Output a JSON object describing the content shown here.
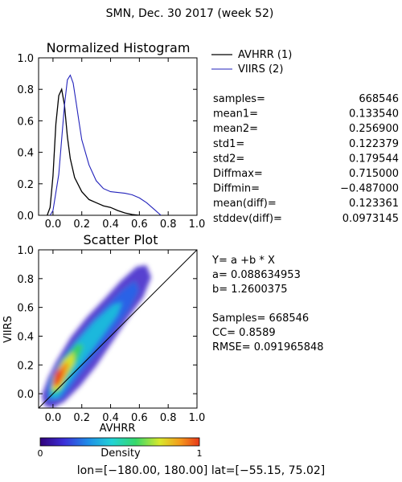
{
  "figure": {
    "title": "SMN,  Dec. 30 2017 (week 52)",
    "footer_lon_prefix": "lon=[",
    "footer_lon_values": "−180.00, 180.00",
    "footer_lat_prefix": "] lat=[",
    "footer_lat_values": "−55.15, 75.02",
    "footer_suffix": "]"
  },
  "colors": {
    "avhrr": "#000000",
    "viirs": "#2222bb",
    "axis": "#000000"
  },
  "chart_data": [
    {
      "type": "line",
      "title": "Normalized Histogram",
      "xlim": [
        -0.1,
        1.0
      ],
      "ylim": [
        0.0,
        1.0
      ],
      "xticks": [
        "0.0",
        "0.2",
        "0.4",
        "0.6",
        "0.8",
        "1.0"
      ],
      "yticks": [
        "0.0",
        "0.2",
        "0.4",
        "0.6",
        "0.8",
        "1.0"
      ],
      "grid": false,
      "legend_position": "right",
      "series": [
        {
          "name": "AVHRR (1)",
          "x": [
            -0.04,
            -0.02,
            0.0,
            0.02,
            0.04,
            0.06,
            0.08,
            0.1,
            0.12,
            0.15,
            0.2,
            0.25,
            0.3,
            0.35,
            0.4,
            0.45,
            0.5,
            0.55,
            0.6
          ],
          "y": [
            0.0,
            0.05,
            0.25,
            0.58,
            0.76,
            0.8,
            0.7,
            0.5,
            0.36,
            0.24,
            0.15,
            0.1,
            0.08,
            0.06,
            0.05,
            0.03,
            0.015,
            0.005,
            0.0
          ]
        },
        {
          "name": "VIIRS (2)",
          "x": [
            -0.02,
            0.0,
            0.04,
            0.08,
            0.1,
            0.12,
            0.14,
            0.16,
            0.18,
            0.2,
            0.25,
            0.3,
            0.35,
            0.4,
            0.45,
            0.5,
            0.55,
            0.6,
            0.65,
            0.7,
            0.75
          ],
          "y": [
            0.0,
            0.03,
            0.26,
            0.7,
            0.86,
            0.89,
            0.84,
            0.72,
            0.6,
            0.48,
            0.32,
            0.22,
            0.17,
            0.15,
            0.145,
            0.14,
            0.13,
            0.11,
            0.08,
            0.04,
            0.0
          ]
        }
      ],
      "stats": [
        {
          "label": "samples=",
          "value": "668546"
        },
        {
          "label": "mean1=",
          "value": "0.133540"
        },
        {
          "label": "mean2=",
          "value": "0.256900"
        },
        {
          "label": "std1=",
          "value": "0.122379"
        },
        {
          "label": "std2=",
          "value": "0.179544"
        },
        {
          "label": "Diffmax=",
          "value": "0.715000"
        },
        {
          "label": "Diffmin=",
          "value": "−0.487000"
        },
        {
          "label": "mean(diff)=",
          "value": "0.123361"
        },
        {
          "label": "stddev(diff)=",
          "value": "0.0973145"
        }
      ]
    },
    {
      "type": "heatmap",
      "title": "Scatter Plot",
      "xlabel": "AVHRR",
      "ylabel": "VIIRS",
      "xlim": [
        -0.1,
        1.0
      ],
      "ylim": [
        -0.1,
        1.0
      ],
      "xticks": [
        "0.0",
        "0.2",
        "0.4",
        "0.6",
        "0.8",
        "1.0"
      ],
      "yticks": [
        "0.0",
        "0.2",
        "0.4",
        "0.6",
        "0.8",
        "1.0"
      ],
      "reference_line": "1:1",
      "fit": {
        "a": 0.088634953,
        "b": 1.2600375
      },
      "density_ridge": {
        "x": [
          0.0,
          0.05,
          0.1,
          0.15,
          0.2,
          0.3,
          0.4,
          0.5,
          0.6
        ],
        "y": [
          0.05,
          0.16,
          0.26,
          0.34,
          0.41,
          0.5,
          0.58,
          0.66,
          0.73
        ]
      },
      "annotations": [
        "Y=  a  +b  *  X",
        "a=  0.088634953",
        "b=  1.2600375",
        "Samples=  668546",
        "CC=    0.8589",
        "RMSE=  0.091965848"
      ],
      "colorbar": {
        "label": "Density",
        "min": "0",
        "max": "1"
      }
    }
  ]
}
